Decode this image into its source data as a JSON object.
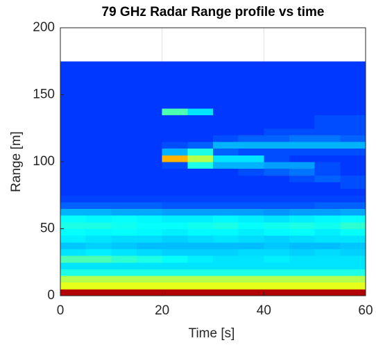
{
  "chart_data": {
    "type": "heatmap",
    "title": "79 GHz Radar Range profile vs time",
    "xlabel": "Time [s]",
    "ylabel": "Range [m]",
    "colormap": "jet",
    "zlim": [
      0,
      1
    ],
    "x": [
      0,
      5,
      10,
      15,
      20,
      25,
      30,
      35,
      40,
      45,
      50,
      55,
      60
    ],
    "y": [
      0,
      5,
      10,
      15,
      20,
      25,
      30,
      35,
      40,
      45,
      50,
      55,
      60,
      65,
      70,
      75,
      80,
      85,
      90,
      95,
      100,
      105,
      110,
      115,
      120,
      125,
      130,
      135,
      140,
      145,
      150,
      155,
      160,
      165,
      170,
      175
    ],
    "z": [
      [
        0.95,
        0.95,
        0.95,
        0.95,
        0.95,
        0.95,
        0.95,
        0.95,
        0.95,
        0.95,
        0.95,
        0.95
      ],
      [
        0.6,
        0.6,
        0.6,
        0.6,
        0.6,
        0.6,
        0.6,
        0.6,
        0.6,
        0.6,
        0.6,
        0.6
      ],
      [
        0.55,
        0.55,
        0.55,
        0.55,
        0.55,
        0.55,
        0.55,
        0.55,
        0.55,
        0.55,
        0.55,
        0.55
      ],
      [
        0.4,
        0.4,
        0.4,
        0.4,
        0.4,
        0.4,
        0.4,
        0.4,
        0.4,
        0.4,
        0.4,
        0.4
      ],
      [
        0.35,
        0.35,
        0.35,
        0.35,
        0.35,
        0.35,
        0.35,
        0.35,
        0.35,
        0.35,
        0.35,
        0.35
      ],
      [
        0.45,
        0.45,
        0.42,
        0.4,
        0.38,
        0.36,
        0.35,
        0.35,
        0.36,
        0.35,
        0.35,
        0.35
      ],
      [
        0.35,
        0.36,
        0.35,
        0.34,
        0.33,
        0.33,
        0.33,
        0.34,
        0.34,
        0.33,
        0.34,
        0.33
      ],
      [
        0.32,
        0.33,
        0.32,
        0.31,
        0.31,
        0.31,
        0.31,
        0.31,
        0.32,
        0.31,
        0.31,
        0.32
      ],
      [
        0.36,
        0.35,
        0.34,
        0.34,
        0.33,
        0.34,
        0.35,
        0.34,
        0.33,
        0.34,
        0.35,
        0.35
      ],
      [
        0.38,
        0.37,
        0.38,
        0.37,
        0.36,
        0.37,
        0.37,
        0.36,
        0.37,
        0.38,
        0.36,
        0.38
      ],
      [
        0.4,
        0.4,
        0.39,
        0.38,
        0.38,
        0.39,
        0.4,
        0.38,
        0.39,
        0.4,
        0.39,
        0.42
      ],
      [
        0.38,
        0.37,
        0.38,
        0.37,
        0.36,
        0.36,
        0.37,
        0.36,
        0.35,
        0.36,
        0.37,
        0.38
      ],
      [
        0.3,
        0.3,
        0.29,
        0.29,
        0.28,
        0.28,
        0.28,
        0.28,
        0.27,
        0.28,
        0.28,
        0.29
      ],
      [
        0.22,
        0.22,
        0.22,
        0.22,
        0.21,
        0.21,
        0.21,
        0.21,
        0.21,
        0.21,
        0.22,
        0.22
      ],
      [
        0.19,
        0.19,
        0.19,
        0.19,
        0.19,
        0.19,
        0.19,
        0.19,
        0.19,
        0.19,
        0.19,
        0.19
      ],
      [
        0.18,
        0.18,
        0.18,
        0.18,
        0.18,
        0.18,
        0.18,
        0.18,
        0.18,
        0.18,
        0.18,
        0.18
      ],
      [
        0.18,
        0.18,
        0.18,
        0.18,
        0.18,
        0.18,
        0.18,
        0.18,
        0.18,
        0.18,
        0.18,
        0.2
      ],
      [
        0.18,
        0.18,
        0.18,
        0.18,
        0.18,
        0.18,
        0.18,
        0.18,
        0.18,
        0.2,
        0.22,
        0.2
      ],
      [
        0.18,
        0.18,
        0.18,
        0.18,
        0.18,
        0.18,
        0.18,
        0.2,
        0.22,
        0.24,
        0.2,
        0.18
      ],
      [
        0.18,
        0.18,
        0.18,
        0.18,
        0.2,
        0.4,
        0.3,
        0.3,
        0.28,
        0.28,
        0.2,
        0.18
      ],
      [
        0.18,
        0.18,
        0.18,
        0.18,
        0.7,
        0.55,
        0.35,
        0.35,
        0.2,
        0.18,
        0.18,
        0.18
      ],
      [
        0.18,
        0.18,
        0.18,
        0.18,
        0.3,
        0.4,
        0.22,
        0.2,
        0.2,
        0.2,
        0.2,
        0.2
      ],
      [
        0.18,
        0.18,
        0.18,
        0.18,
        0.2,
        0.22,
        0.3,
        0.3,
        0.3,
        0.3,
        0.3,
        0.3
      ],
      [
        0.18,
        0.18,
        0.18,
        0.18,
        0.18,
        0.18,
        0.2,
        0.22,
        0.22,
        0.24,
        0.24,
        0.22
      ],
      [
        0.18,
        0.18,
        0.18,
        0.18,
        0.18,
        0.18,
        0.18,
        0.18,
        0.2,
        0.2,
        0.2,
        0.2
      ],
      [
        0.18,
        0.18,
        0.18,
        0.18,
        0.18,
        0.18,
        0.18,
        0.18,
        0.18,
        0.18,
        0.2,
        0.2
      ],
      [
        0.18,
        0.18,
        0.18,
        0.18,
        0.18,
        0.18,
        0.18,
        0.18,
        0.18,
        0.18,
        0.2,
        0.2
      ],
      [
        0.18,
        0.18,
        0.18,
        0.18,
        0.45,
        0.35,
        0.18,
        0.18,
        0.18,
        0.18,
        0.18,
        0.18
      ],
      [
        0.18,
        0.18,
        0.18,
        0.18,
        0.18,
        0.18,
        0.18,
        0.18,
        0.18,
        0.18,
        0.18,
        0.18
      ],
      [
        0.18,
        0.18,
        0.18,
        0.18,
        0.18,
        0.18,
        0.18,
        0.18,
        0.18,
        0.18,
        0.18,
        0.18
      ],
      [
        0.18,
        0.18,
        0.18,
        0.18,
        0.18,
        0.18,
        0.18,
        0.18,
        0.18,
        0.18,
        0.18,
        0.18
      ],
      [
        0.18,
        0.18,
        0.18,
        0.18,
        0.18,
        0.18,
        0.18,
        0.18,
        0.18,
        0.18,
        0.18,
        0.18
      ],
      [
        0.18,
        0.18,
        0.18,
        0.18,
        0.18,
        0.18,
        0.18,
        0.18,
        0.18,
        0.18,
        0.18,
        0.18
      ],
      [
        0.18,
        0.18,
        0.18,
        0.18,
        0.18,
        0.18,
        0.18,
        0.18,
        0.18,
        0.18,
        0.18,
        0.18
      ],
      [
        0.18,
        0.18,
        0.18,
        0.18,
        0.18,
        0.18,
        0.18,
        0.18,
        0.18,
        0.18,
        0.18,
        0.18
      ]
    ],
    "xlim": [
      0,
      60
    ],
    "xticks": [
      0,
      20,
      40,
      60
    ],
    "ylim": [
      0,
      200
    ],
    "yticks": [
      0,
      50,
      100,
      150,
      200
    ],
    "grid": true
  }
}
